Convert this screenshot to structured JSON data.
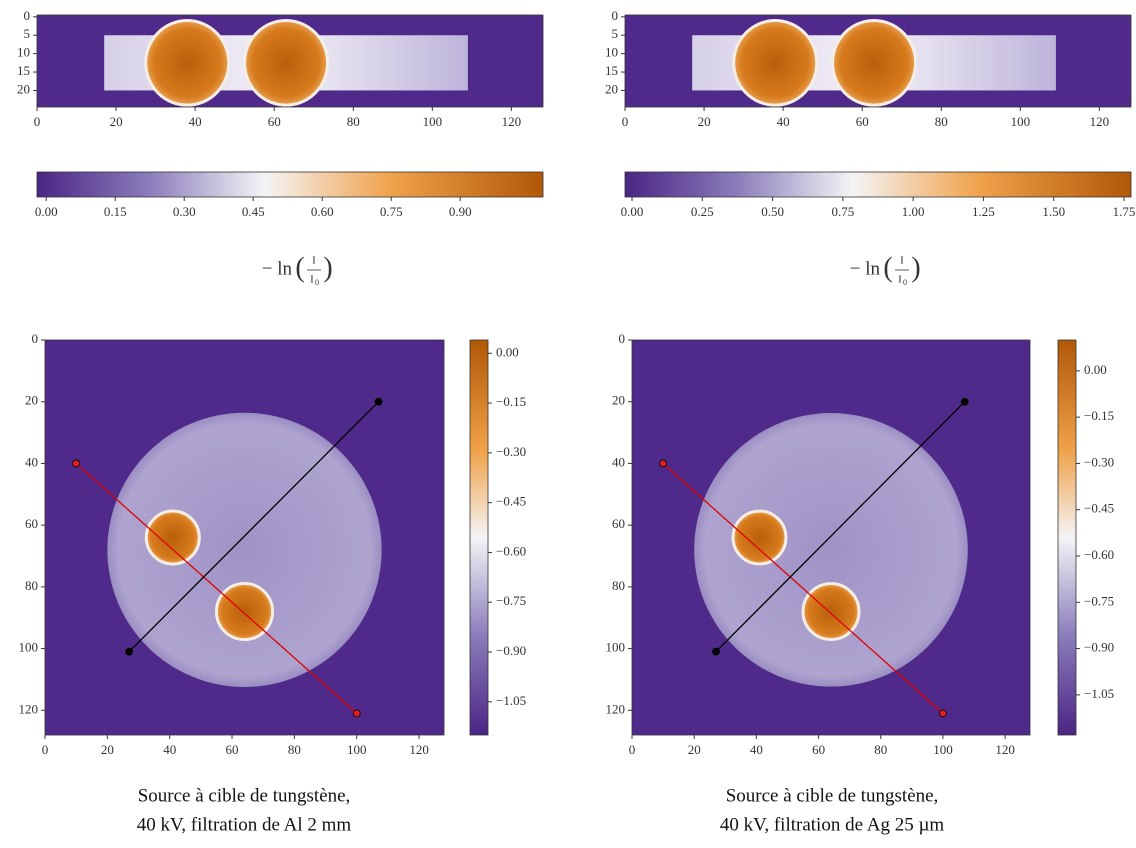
{
  "chart_data": [
    {
      "type": "sinogram",
      "xlim": [
        0,
        128
      ],
      "xticks": [
        0,
        20,
        40,
        60,
        80,
        100,
        120
      ],
      "ylim": [
        -0.5,
        24.5
      ],
      "yticks": [
        0,
        5,
        10,
        15,
        20
      ],
      "colorbar": {
        "orientation": "horizontal",
        "lim": [
          -0.02,
          1.08
        ],
        "ticks": [
          {
            "value": 0,
            "label": "0.00"
          },
          {
            "value": 0.15,
            "label": "0.15"
          },
          {
            "value": 0.3,
            "label": "0.30"
          },
          {
            "value": 0.45,
            "label": "0.45"
          },
          {
            "value": 0.6,
            "label": "0.60"
          },
          {
            "value": 0.75,
            "label": "0.75"
          },
          {
            "value": 0.9,
            "label": "0.90"
          }
        ],
        "label": {
          "prefix": "− ln",
          "open": "(",
          "numerator": "I",
          "denominator": "I",
          "subscript": "0",
          "close": ")"
        }
      }
    },
    {
      "type": "sinogram",
      "xlim": [
        0,
        128
      ],
      "xticks": [
        0,
        20,
        40,
        60,
        80,
        100,
        120
      ],
      "ylim": [
        -0.5,
        24.5
      ],
      "yticks": [
        0,
        5,
        10,
        15,
        20
      ],
      "colorbar": {
        "orientation": "horizontal",
        "lim": [
          -0.025,
          1.775
        ],
        "ticks": [
          {
            "value": 0,
            "label": "0.00"
          },
          {
            "value": 0.25,
            "label": "0.25"
          },
          {
            "value": 0.5,
            "label": "0.50"
          },
          {
            "value": 0.75,
            "label": "0.75"
          },
          {
            "value": 1,
            "label": "1.00"
          },
          {
            "value": 1.25,
            "label": "1.25"
          },
          {
            "value": 1.5,
            "label": "1.50"
          },
          {
            "value": 1.75,
            "label": "1.75"
          }
        ],
        "label": {
          "prefix": "− ln",
          "open": "(",
          "numerator": "I",
          "denominator": "I",
          "subscript": "0",
          "close": ")"
        }
      }
    },
    {
      "type": "reconstruction",
      "xlim": [
        0,
        128
      ],
      "xticks": [
        0,
        20,
        40,
        60,
        80,
        100,
        120
      ],
      "ylim": [
        0,
        128
      ],
      "yticks": [
        0,
        20,
        40,
        60,
        80,
        100,
        120
      ],
      "colorbar": {
        "orientation": "vertical",
        "lim": [
          -1.15,
          0.04
        ],
        "ticks": [
          {
            "value": 0,
            "label": "0.00"
          },
          {
            "value": -0.15,
            "label": "−0.15"
          },
          {
            "value": -0.3,
            "label": "−0.30"
          },
          {
            "value": -0.45,
            "label": "−0.45"
          },
          {
            "value": -0.6,
            "label": "−0.60"
          },
          {
            "value": -0.75,
            "label": "−0.75"
          },
          {
            "value": -0.9,
            "label": "−0.90"
          },
          {
            "value": -1.05,
            "label": "−1.05"
          }
        ]
      },
      "series": [
        {
          "color": "#e00000",
          "x": [
            10,
            100
          ],
          "values": [
            40,
            121
          ]
        },
        {
          "color": "#000000",
          "x": [
            27,
            107
          ],
          "values": [
            101,
            20
          ]
        }
      ],
      "caption": [
        "Source à cible de tungstène,",
        "40 kV, filtration de Al 2 mm"
      ]
    },
    {
      "type": "reconstruction",
      "xlim": [
        0,
        128
      ],
      "xticks": [
        0,
        20,
        40,
        60,
        80,
        100,
        120
      ],
      "ylim": [
        0,
        128
      ],
      "yticks": [
        0,
        20,
        40,
        60,
        80,
        100,
        120
      ],
      "colorbar": {
        "orientation": "vertical",
        "lim": [
          -1.18,
          0.1
        ],
        "ticks": [
          {
            "value": 0,
            "label": "0.00"
          },
          {
            "value": -0.15,
            "label": "−0.15"
          },
          {
            "value": -0.3,
            "label": "−0.30"
          },
          {
            "value": -0.45,
            "label": "−0.45"
          },
          {
            "value": -0.6,
            "label": "−0.60"
          },
          {
            "value": -0.75,
            "label": "−0.75"
          },
          {
            "value": -0.9,
            "label": "−0.90"
          },
          {
            "value": -1.05,
            "label": "−1.05"
          }
        ]
      },
      "series": [
        {
          "color": "#e00000",
          "x": [
            10,
            100
          ],
          "values": [
            40,
            121
          ]
        },
        {
          "color": "#000000",
          "x": [
            27,
            107
          ],
          "values": [
            101,
            20
          ]
        }
      ],
      "caption": [
        "Source à cible de tungstène,",
        "40 kV, filtration de Ag 25 µm"
      ]
    }
  ]
}
